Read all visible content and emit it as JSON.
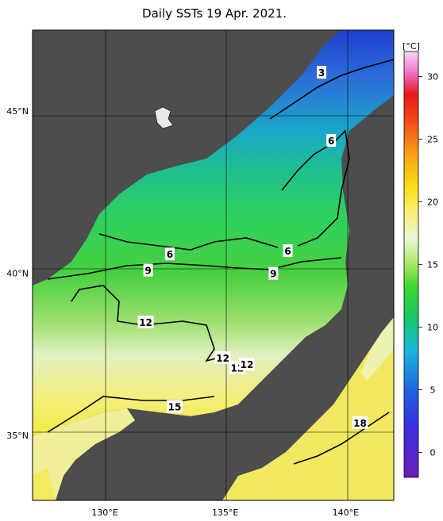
{
  "title": "Daily SSTs 19 Apr. 2021.",
  "axes": {
    "lat_labels": [
      {
        "lat": 45,
        "label": "45°N"
      },
      {
        "lat": 40,
        "label": "40°N"
      },
      {
        "lat": 35,
        "label": "35°N"
      }
    ],
    "lon_labels": [
      {
        "lon": 130,
        "label": "130°E"
      },
      {
        "lon": 135,
        "label": "135°E"
      },
      {
        "lon": 140,
        "label": "140°E"
      }
    ],
    "lon_range": [
      127,
      142
    ],
    "lat_range": [
      33,
      47.5
    ]
  },
  "colorbar": {
    "unit": "[°C]",
    "min": -2,
    "max": 32,
    "ticks": [
      {
        "value": 0,
        "label": "0"
      },
      {
        "value": 5,
        "label": "5"
      },
      {
        "value": 10,
        "label": "10"
      },
      {
        "value": 15,
        "label": "15"
      },
      {
        "value": 20,
        "label": "20"
      },
      {
        "value": 25,
        "label": "25"
      },
      {
        "value": 30,
        "label": "30"
      }
    ]
  },
  "contour_labels": [
    {
      "text": "3",
      "lon": 139.0,
      "lat": 46.2
    },
    {
      "text": "6",
      "lon": 139.4,
      "lat": 44.1
    },
    {
      "text": "6",
      "lon": 132.7,
      "lat": 40.6
    },
    {
      "text": "6",
      "lon": 137.6,
      "lat": 40.7
    },
    {
      "text": "9",
      "lon": 131.8,
      "lat": 40.1
    },
    {
      "text": "9",
      "lon": 137.0,
      "lat": 40.0
    },
    {
      "text": "12",
      "lon": 131.7,
      "lat": 38.5
    },
    {
      "text": "12",
      "lon": 134.9,
      "lat": 37.4
    },
    {
      "text": "12",
      "lon": 135.5,
      "lat": 37.1
    },
    {
      "text": "12",
      "lon": 135.9,
      "lat": 37.2
    },
    {
      "text": "15",
      "lon": 132.9,
      "lat": 35.9
    },
    {
      "text": "18",
      "lon": 140.6,
      "lat": 35.4
    }
  ]
}
